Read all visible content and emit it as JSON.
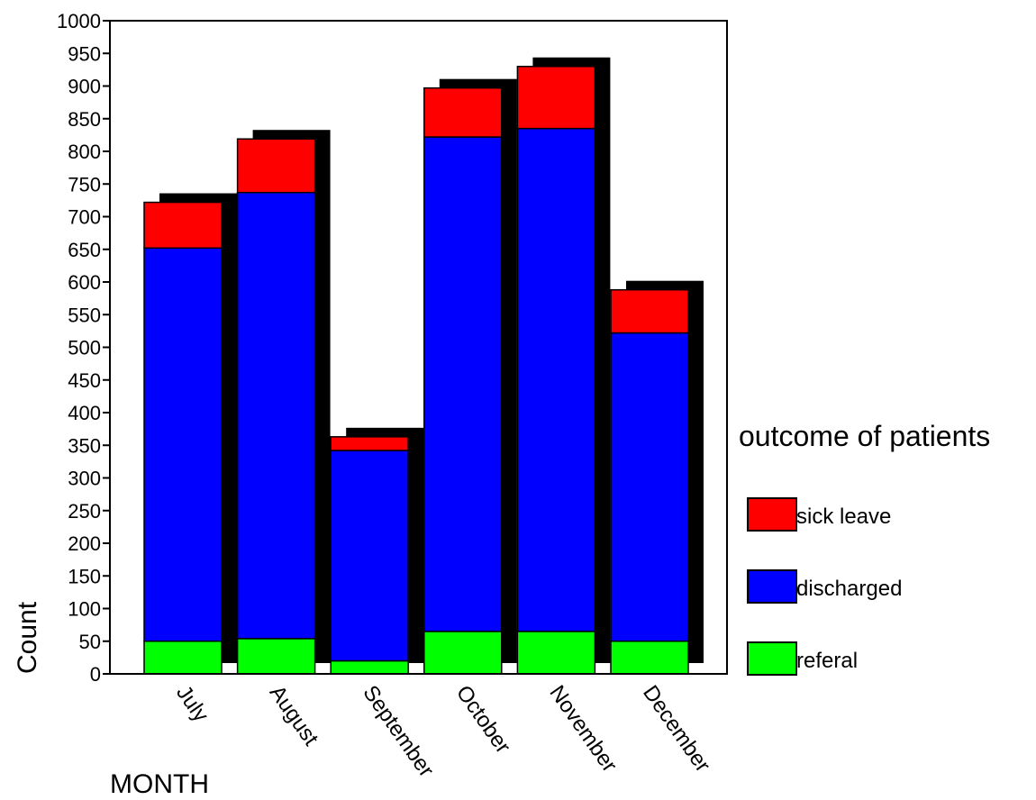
{
  "chart_data": {
    "type": "bar",
    "stacked": true,
    "title": "",
    "xlabel": "MONTH",
    "ylabel": "Count",
    "ylim": [
      0,
      1000
    ],
    "yticks": [
      0,
      50,
      100,
      150,
      200,
      250,
      300,
      350,
      400,
      450,
      500,
      550,
      600,
      650,
      700,
      750,
      800,
      850,
      900,
      950,
      1000
    ],
    "grid": false,
    "categories": [
      "July",
      "August",
      "September",
      "October",
      "November",
      "December"
    ],
    "series": [
      {
        "name": "referal",
        "color": "#00ff00",
        "values": [
          50,
          54,
          20,
          65,
          65,
          50
        ]
      },
      {
        "name": "discharged",
        "color": "#0000ff",
        "values": [
          602,
          683,
          322,
          757,
          770,
          472
        ]
      },
      {
        "name": "sick leave",
        "color": "#ff0000",
        "values": [
          70,
          82,
          21,
          75,
          95,
          66
        ]
      }
    ],
    "legend": {
      "title": "outcome of patients",
      "position": "right",
      "entries": [
        "sick leave",
        "discharged",
        "referal"
      ]
    }
  }
}
